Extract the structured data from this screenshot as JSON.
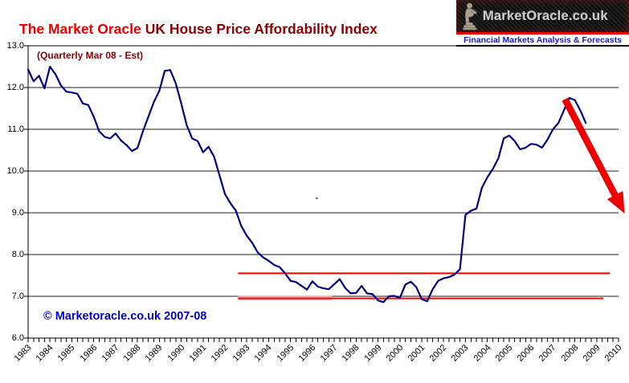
{
  "header": {
    "title_red": "The Market Oracle",
    "title_dark": "UK House Price Affordability Index"
  },
  "logo": {
    "name": "MarketOracle.co.uk",
    "tagline": "Financial Markets Analysis & Forecasts",
    "statue_icon": "seated-reader-statue-icon",
    "colors": {
      "background": "#111111",
      "name": "#cfcfcf",
      "tagline": "#1a1ac0",
      "divider": "#ee0000"
    }
  },
  "chart_data": {
    "type": "line",
    "annotation": "(Quarterly Mar 08 - Est)",
    "copyright": "© Marketoracle.co.uk 2007-08",
    "ylim": [
      6.0,
      13.0
    ],
    "yticks": [
      6.0,
      7.0,
      8.0,
      9.0,
      10.0,
      11.0,
      12.0,
      13.0
    ],
    "x_years": [
      1983,
      1984,
      1985,
      1986,
      1987,
      1988,
      1989,
      1990,
      1991,
      1992,
      1993,
      1994,
      1995,
      1996,
      1997,
      1998,
      1999,
      2000,
      2001,
      2002,
      2003,
      2004,
      2005,
      2006,
      2007,
      2008,
      2009,
      2010
    ],
    "x_minor_tick_step_years": 0.25,
    "grid": "horizontal",
    "series": [
      {
        "name": "UK House Price Affordability Index",
        "color": "#00007f",
        "start_year": 1983,
        "period": "quarterly",
        "values": [
          12.43,
          12.15,
          12.28,
          11.98,
          12.5,
          12.32,
          12.05,
          11.9,
          11.88,
          11.85,
          11.62,
          11.58,
          11.3,
          10.95,
          10.82,
          10.78,
          10.9,
          10.73,
          10.62,
          10.48,
          10.55,
          10.95,
          11.3,
          11.65,
          11.92,
          12.4,
          12.42,
          12.1,
          11.62,
          11.1,
          10.78,
          10.72,
          10.45,
          10.58,
          10.35,
          9.9,
          9.45,
          9.23,
          9.05,
          8.68,
          8.45,
          8.28,
          8.05,
          7.93,
          7.85,
          7.75,
          7.7,
          7.55,
          7.37,
          7.34,
          7.25,
          7.16,
          7.36,
          7.23,
          7.19,
          7.17,
          7.29,
          7.41,
          7.2,
          7.07,
          7.08,
          7.25,
          7.07,
          7.05,
          6.9,
          6.86,
          7.0,
          7.01,
          6.96,
          7.28,
          7.35,
          7.22,
          6.93,
          6.88,
          7.17,
          7.37,
          7.43,
          7.46,
          7.52,
          7.65,
          8.95,
          9.05,
          9.1,
          9.6,
          9.85,
          10.05,
          10.3,
          10.78,
          10.85,
          10.72,
          10.52,
          10.56,
          10.65,
          10.63,
          10.56,
          10.75,
          11.0,
          11.15,
          11.45,
          11.75,
          11.7,
          11.45,
          11.15
        ]
      }
    ],
    "reference_lines": [
      {
        "name": "resistance-line",
        "value": 7.55,
        "start_year": 1992.6,
        "end_year": 2009.6,
        "color": "#ff0000",
        "width": 2
      },
      {
        "name": "support-line",
        "value": 6.95,
        "start_year": 1992.6,
        "end_year": 2009.3,
        "color": "#ff0000",
        "width": 2
      },
      {
        "name": "support-band",
        "value": 6.96,
        "start_year": 1992.6,
        "end_year": 1996.9,
        "color": "#f7a8a8",
        "width": 5
      }
    ],
    "forecast_arrow": {
      "from_year": 2007.55,
      "from_value": 11.72,
      "to_year": 2010.28,
      "to_value": 8.98,
      "color": "#ee0000"
    },
    "stray_dot": {
      "year": 1996.2,
      "value": 9.35
    }
  }
}
